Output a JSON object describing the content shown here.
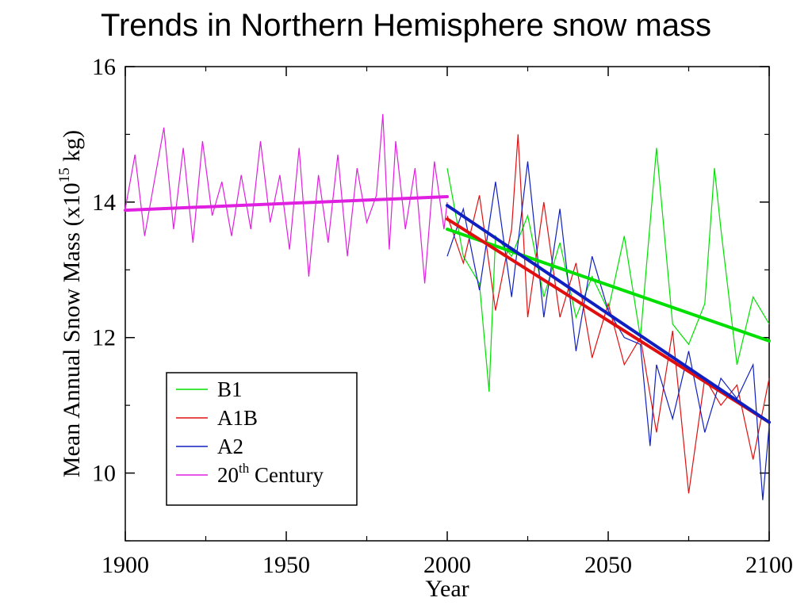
{
  "title": "Trends in Northern Hemisphere snow mass",
  "chart_data": {
    "type": "line",
    "xlabel": "Year",
    "ylabel": {
      "main": "Mean Annual Snow Mass (x10",
      "sup": "15",
      "unit": " kg)"
    },
    "xlim": [
      1900,
      2100
    ],
    "ylim": [
      9,
      16
    ],
    "x_ticks": [
      1900,
      1950,
      2000,
      2050,
      2100
    ],
    "x_tick_labels": [
      "1900",
      "1950",
      "2000",
      "2050",
      "2100"
    ],
    "y_ticks": [
      10,
      12,
      14,
      16
    ],
    "y_tick_labels": [
      "10",
      "12",
      "14",
      "16"
    ],
    "grid": false,
    "legend_position": "bottom-left",
    "series": [
      {
        "name": "B1",
        "color": "#00e000",
        "x": [
          2000,
          2005,
          2010,
          2013,
          2015,
          2020,
          2025,
          2030,
          2035,
          2040,
          2045,
          2050,
          2055,
          2060,
          2065,
          2070,
          2075,
          2080,
          2083,
          2085,
          2090,
          2095,
          2100
        ],
        "y": [
          14.5,
          13.2,
          12.8,
          11.2,
          13.5,
          13.2,
          13.8,
          12.6,
          13.4,
          12.3,
          12.9,
          12.4,
          13.5,
          12.0,
          14.8,
          12.2,
          11.9,
          12.5,
          14.5,
          13.6,
          11.6,
          12.6,
          12.2
        ],
        "trend": [
          [
            2000,
            13.6
          ],
          [
            2100,
            11.95
          ]
        ]
      },
      {
        "name": "A1B",
        "color": "#e01010",
        "x": [
          2000,
          2005,
          2010,
          2015,
          2020,
          2022,
          2025,
          2030,
          2035,
          2040,
          2045,
          2050,
          2055,
          2060,
          2065,
          2070,
          2075,
          2080,
          2085,
          2090,
          2095,
          2100
        ],
        "y": [
          13.8,
          13.1,
          14.1,
          12.4,
          13.6,
          15.0,
          12.3,
          14.0,
          12.3,
          13.1,
          11.7,
          12.5,
          11.6,
          12.0,
          10.6,
          12.1,
          9.7,
          11.4,
          11.0,
          11.3,
          10.2,
          11.4
        ],
        "trend": [
          [
            2000,
            13.75
          ],
          [
            2100,
            10.75
          ]
        ]
      },
      {
        "name": "A2",
        "color": "#1020c0",
        "x": [
          2000,
          2005,
          2010,
          2015,
          2020,
          2025,
          2030,
          2035,
          2040,
          2045,
          2050,
          2055,
          2060,
          2063,
          2065,
          2070,
          2075,
          2080,
          2085,
          2090,
          2095,
          2098,
          2100
        ],
        "y": [
          13.2,
          13.9,
          12.7,
          14.3,
          12.6,
          14.6,
          12.3,
          13.9,
          11.8,
          13.2,
          12.4,
          12.0,
          11.9,
          10.4,
          11.6,
          10.8,
          11.8,
          10.6,
          11.4,
          11.1,
          11.6,
          9.6,
          10.7
        ],
        "trend": [
          [
            2000,
            13.95
          ],
          [
            2100,
            10.75
          ]
        ]
      },
      {
        "name": "20th Century",
        "name_sup": "th",
        "name_base": "20",
        "name_rest": " Century",
        "color": "#e020e0",
        "x": [
          1900,
          1903,
          1906,
          1909,
          1912,
          1915,
          1918,
          1921,
          1924,
          1927,
          1930,
          1933,
          1936,
          1939,
          1942,
          1945,
          1948,
          1951,
          1954,
          1957,
          1960,
          1963,
          1966,
          1969,
          1972,
          1975,
          1978,
          1980,
          1982,
          1984,
          1987,
          1990,
          1993,
          1996,
          1999,
          2000
        ],
        "y": [
          13.9,
          14.7,
          13.5,
          14.3,
          15.1,
          13.6,
          14.8,
          13.4,
          14.9,
          13.8,
          14.3,
          13.5,
          14.4,
          13.6,
          14.9,
          13.7,
          14.4,
          13.3,
          14.8,
          12.9,
          14.4,
          13.4,
          14.7,
          13.2,
          14.5,
          13.7,
          14.1,
          15.3,
          13.3,
          14.9,
          13.6,
          14.5,
          12.8,
          14.6,
          13.6,
          14.0
        ],
        "trend": [
          [
            1900,
            13.88
          ],
          [
            2000,
            14.08
          ]
        ]
      }
    ]
  }
}
